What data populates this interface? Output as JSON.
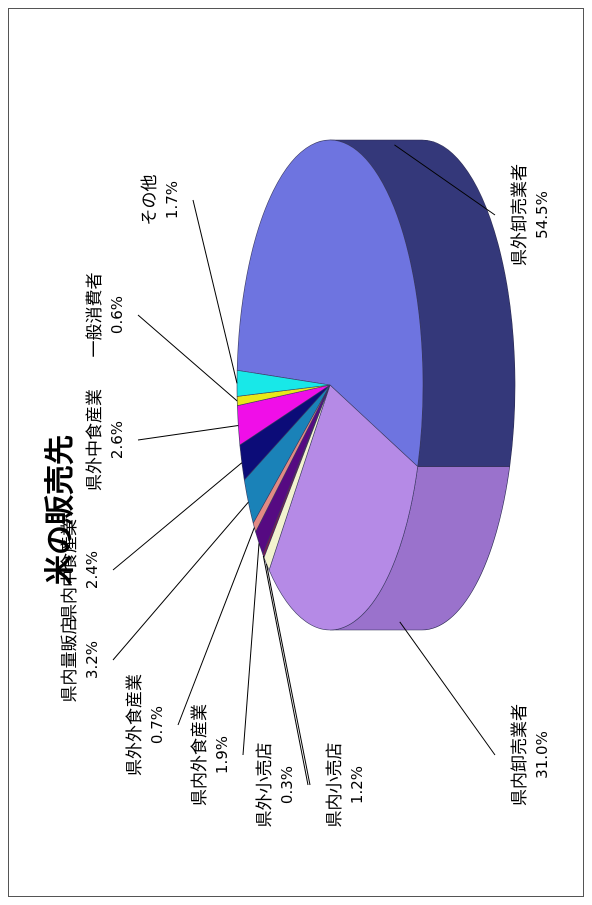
{
  "chart_data": {
    "type": "pie",
    "title": "米の販売先",
    "slices": [
      {
        "name": "県外卸売業者",
        "value_label": "54.5%",
        "value": 54.5,
        "color": "#6e74e0",
        "side": "#34387a"
      },
      {
        "name": "県内卸売業者",
        "value_label": "31.0%",
        "value": 31.0,
        "color": "#b58ae6",
        "side": "#9a72cc"
      },
      {
        "name": "県内小売店",
        "value_label": "1.2%",
        "value": 1.2,
        "color": "#f3f3cf",
        "side": "#d4d4a8"
      },
      {
        "name": "県外小売店",
        "value_label": "0.3%",
        "value": 0.3,
        "color": "#7a1c52",
        "side": "#5a0f3a"
      },
      {
        "name": "県内外食産業",
        "value_label": "1.9%",
        "value": 1.9,
        "color": "#560a82",
        "side": "#3c0560"
      },
      {
        "name": "県外外食産業",
        "value_label": "0.7%",
        "value": 0.7,
        "color": "#e28a84",
        "side": "#b86a65"
      },
      {
        "name": "県内量販店",
        "value_label": "3.2%",
        "value": 3.2,
        "color": "#1a82b8",
        "side": "#11618a"
      },
      {
        "name": "県内中食産業",
        "value_label": "2.4%",
        "value": 2.4,
        "color": "#0c0c78",
        "side": "#060650"
      },
      {
        "name": "県外中食産業",
        "value_label": "2.6%",
        "value": 2.6,
        "color": "#f00ee8",
        "side": "#b009aa"
      },
      {
        "name": "一般消費者",
        "value_label": "0.6%",
        "value": 0.6,
        "color": "#e8e818",
        "side": "#b5b510"
      },
      {
        "name": "その他",
        "value_label": "1.7%",
        "value": 1.7,
        "color": "#18e8e8",
        "side": "#10b0b0"
      }
    ]
  }
}
